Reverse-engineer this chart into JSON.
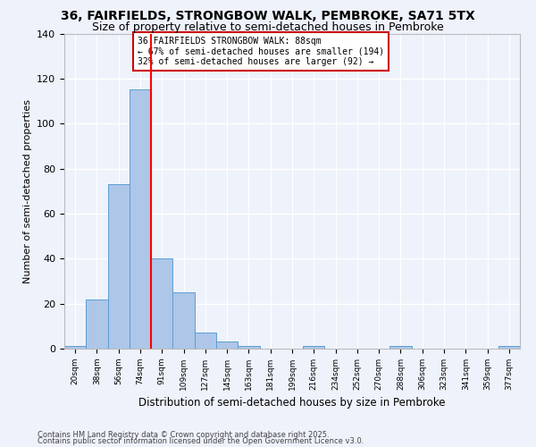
{
  "title1": "36, FAIRFIELDS, STRONGBOW WALK, PEMBROKE, SA71 5TX",
  "title2": "Size of property relative to semi-detached houses in Pembroke",
  "xlabel": "Distribution of semi-detached houses by size in Pembroke",
  "ylabel": "Number of semi-detached properties",
  "bin_labels": [
    "20sqm",
    "38sqm",
    "56sqm",
    "74sqm",
    "91sqm",
    "109sqm",
    "127sqm",
    "145sqm",
    "163sqm",
    "181sqm",
    "199sqm",
    "216sqm",
    "234sqm",
    "252sqm",
    "270sqm",
    "288sqm",
    "306sqm",
    "323sqm",
    "341sqm",
    "359sqm",
    "377sqm"
  ],
  "bin_values": [
    1,
    22,
    73,
    115,
    40,
    25,
    7,
    3,
    1,
    0,
    0,
    1,
    0,
    0,
    0,
    1,
    0,
    0,
    0,
    0,
    1
  ],
  "bar_color": "#aec6e8",
  "bar_edge_color": "#5a9fd4",
  "annotation_title": "36 FAIRFIELDS STRONGBOW WALK: 88sqm",
  "annotation_line2": "← 67% of semi-detached houses are smaller (194)",
  "annotation_line3": "32% of semi-detached houses are larger (92) →",
  "annotation_box_color": "#ffffff",
  "annotation_box_edge": "#cc0000",
  "red_line_x": 4.5,
  "ylim": [
    0,
    140
  ],
  "yticks": [
    0,
    20,
    40,
    60,
    80,
    100,
    120,
    140
  ],
  "footer1": "Contains HM Land Registry data © Crown copyright and database right 2025.",
  "footer2": "Contains public sector information licensed under the Open Government Licence v3.0.",
  "bg_color": "#eef2fb",
  "grid_color": "#ffffff",
  "title1_fontsize": 10,
  "title2_fontsize": 9
}
